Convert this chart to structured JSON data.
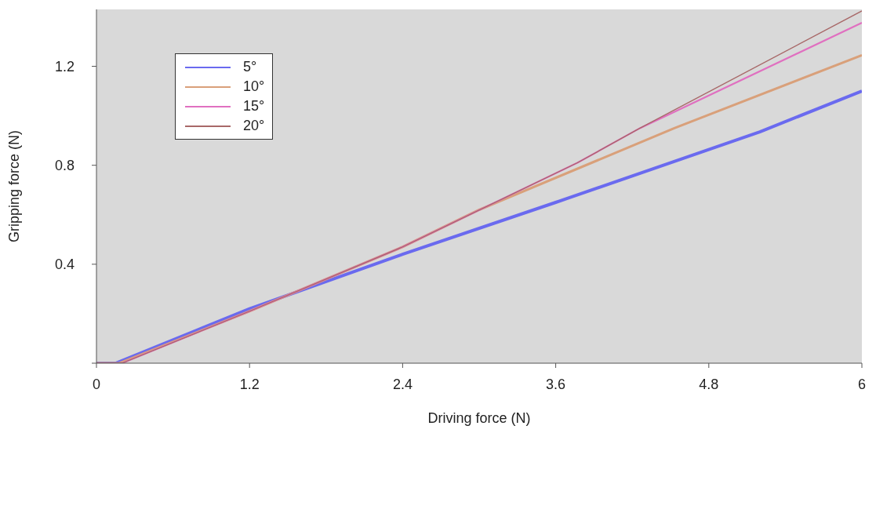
{
  "chart_data": {
    "type": "line",
    "xlabel": "Driving force (N)",
    "ylabel": "Gripping force (N)",
    "xlim": [
      0,
      6
    ],
    "xticks": [
      0,
      1.2,
      2.4,
      3.6,
      4.8,
      6
    ],
    "ylim": [
      0,
      1.43
    ],
    "yticks": [
      {
        "value": 0,
        "label": null
      },
      0.4,
      0.8,
      1.2
    ],
    "grid": false,
    "legend": "top left",
    "marker": "none",
    "line_style": "solid",
    "series": [
      {
        "name": "5°",
        "color": "#6a6aef",
        "x": [
          0,
          0.15,
          1.2,
          2.4,
          3.6,
          5.2,
          6
        ],
        "values": [
          0,
          0,
          0.22,
          0.44,
          0.65,
          0.935,
          1.1
        ]
      },
      {
        "name": "10°",
        "color": "#d9a07a",
        "x": [
          0,
          0.18,
          1.2,
          2.4,
          3.0,
          4.53,
          6
        ],
        "values": [
          0,
          0,
          0.21,
          0.47,
          0.62,
          0.95,
          1.245
        ]
      },
      {
        "name": "15°",
        "color": "#e070c0",
        "x": [
          0,
          0.2,
          1.2,
          2.4,
          3.77,
          4.26,
          6
        ],
        "values": [
          0,
          0,
          0.21,
          0.47,
          0.81,
          0.95,
          1.376
        ]
      },
      {
        "name": "20°",
        "color": "#a86868",
        "x": [
          0,
          0.2,
          1.2,
          2.4,
          3.77,
          4.26,
          6
        ],
        "values": [
          0,
          0,
          0.21,
          0.47,
          0.81,
          0.95,
          1.424
        ]
      }
    ]
  }
}
